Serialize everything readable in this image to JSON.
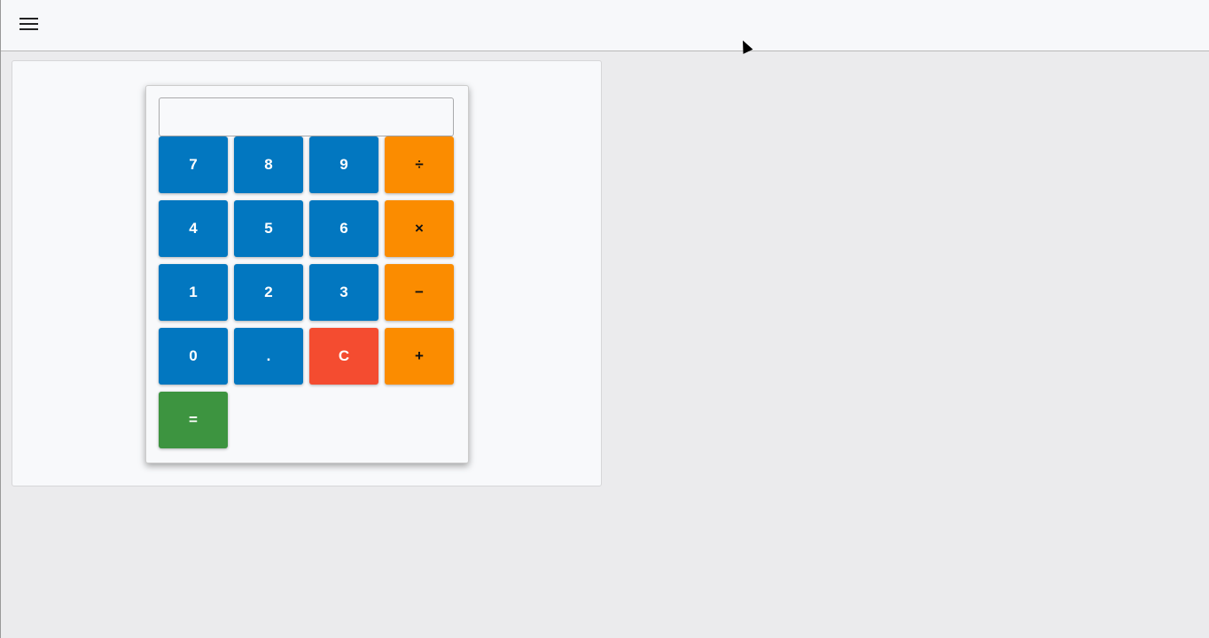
{
  "topbar": {
    "menu_icon": "hamburger-icon"
  },
  "calculator": {
    "display_value": "",
    "buttons": [
      {
        "label": "7",
        "type": "num"
      },
      {
        "label": "8",
        "type": "num"
      },
      {
        "label": "9",
        "type": "num"
      },
      {
        "label": "÷",
        "type": "op"
      },
      {
        "label": "4",
        "type": "num"
      },
      {
        "label": "5",
        "type": "num"
      },
      {
        "label": "6",
        "type": "num"
      },
      {
        "label": "×",
        "type": "op"
      },
      {
        "label": "1",
        "type": "num"
      },
      {
        "label": "2",
        "type": "num"
      },
      {
        "label": "3",
        "type": "num"
      },
      {
        "label": "−",
        "type": "op"
      },
      {
        "label": "0",
        "type": "num"
      },
      {
        "label": ".",
        "type": "num"
      },
      {
        "label": "C",
        "type": "clr"
      },
      {
        "label": "+",
        "type": "op"
      },
      {
        "label": "=",
        "type": "eq"
      }
    ]
  },
  "colors": {
    "number": "#0277c0",
    "operator": "#fb8c00",
    "clear": "#f44c30",
    "equals": "#3d9440"
  }
}
